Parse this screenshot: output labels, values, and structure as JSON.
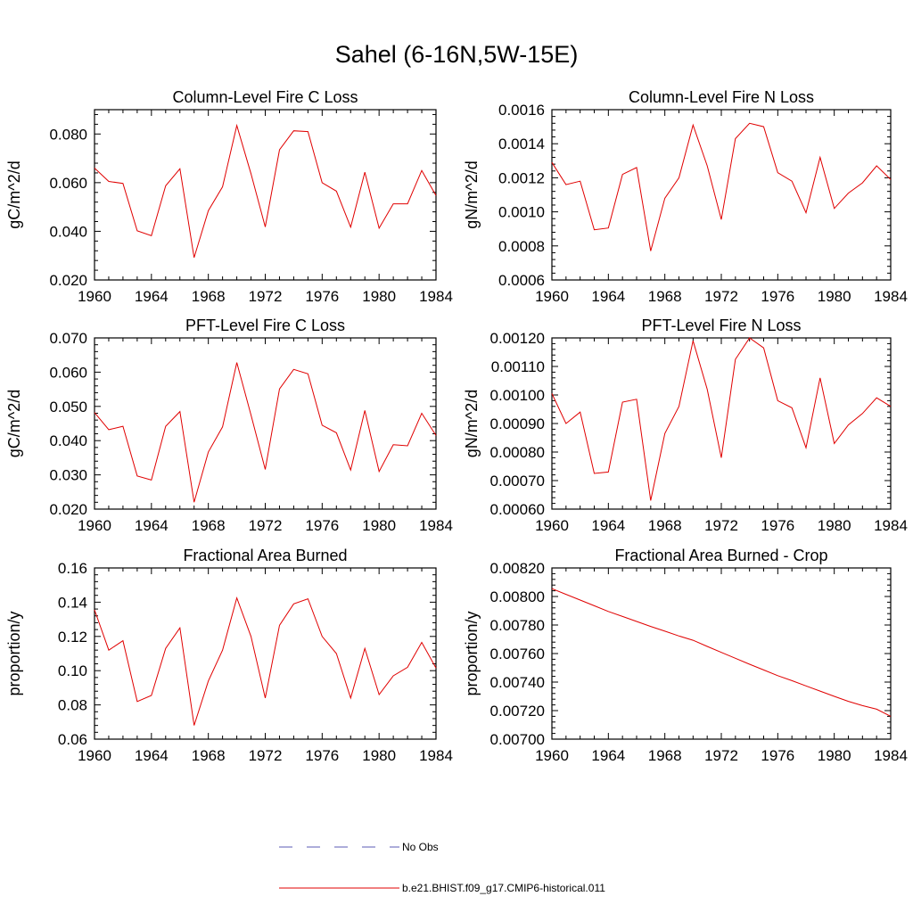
{
  "figure": {
    "title": "Sahel (6-16N,5W-15E)"
  },
  "legend": {
    "entries": [
      {
        "label": "No Obs",
        "color": "#5b5bb5",
        "style": "dashed"
      },
      {
        "label": "b.e21.BHIST.f09_g17.CMIP6-historical.011",
        "color": "#e00000",
        "style": "solid"
      }
    ]
  },
  "chart_data": [
    {
      "type": "line",
      "title": "Column-Level Fire C Loss",
      "ylabel": "gC/m^2/d",
      "xlim": [
        1960,
        1984
      ],
      "ylim": [
        0.02,
        0.09
      ],
      "xticks": [
        1960,
        1964,
        1968,
        1972,
        1976,
        1980,
        1984
      ],
      "xtick_labels": [
        "1960",
        "1964",
        "1968",
        "1972",
        "1976",
        "1980",
        "1984"
      ],
      "yticks": [
        0.02,
        0.04,
        0.06,
        0.08
      ],
      "ytick_labels": [
        "0.020",
        "0.040",
        "0.060",
        "0.080"
      ],
      "x": [
        1960,
        1961,
        1962,
        1963,
        1964,
        1965,
        1966,
        1967,
        1968,
        1969,
        1970,
        1971,
        1972,
        1973,
        1974,
        1975,
        1976,
        1977,
        1978,
        1979,
        1980,
        1981,
        1982,
        1983,
        1984
      ],
      "series": [
        {
          "name": "b.e21.BHIST.f09_g17.CMIP6-historical.011",
          "color": "#e00000",
          "values": [
            0.066,
            0.0605,
            0.0597,
            0.0402,
            0.0382,
            0.0587,
            0.0657,
            0.0292,
            0.0485,
            0.0583,
            0.0835,
            0.0637,
            0.0418,
            0.0735,
            0.0813,
            0.081,
            0.06,
            0.0565,
            0.0417,
            0.0643,
            0.0413,
            0.0513,
            0.0513,
            0.065,
            0.0547
          ]
        }
      ]
    },
    {
      "type": "line",
      "title": "Column-Level Fire N Loss",
      "ylabel": "gN/m^2/d",
      "xlim": [
        1960,
        1984
      ],
      "ylim": [
        0.0006,
        0.0016
      ],
      "xticks": [
        1960,
        1964,
        1968,
        1972,
        1976,
        1980,
        1984
      ],
      "xtick_labels": [
        "1960",
        "1964",
        "1968",
        "1972",
        "1976",
        "1980",
        "1984"
      ],
      "yticks": [
        0.0006,
        0.0008,
        0.001,
        0.0012,
        0.0014,
        0.0016
      ],
      "ytick_labels": [
        "0.0006",
        "0.0008",
        "0.0010",
        "0.0012",
        "0.0014",
        "0.0016"
      ],
      "x": [
        1960,
        1961,
        1962,
        1963,
        1964,
        1965,
        1966,
        1967,
        1968,
        1969,
        1970,
        1971,
        1972,
        1973,
        1974,
        1975,
        1976,
        1977,
        1978,
        1979,
        1980,
        1981,
        1982,
        1983,
        1984
      ],
      "series": [
        {
          "name": "b.e21.BHIST.f09_g17.CMIP6-historical.011",
          "color": "#e00000",
          "values": [
            0.00129,
            0.00116,
            0.00118,
            0.000895,
            0.000905,
            0.00122,
            0.00126,
            0.00077,
            0.00108,
            0.0012,
            0.00151,
            0.00127,
            0.000955,
            0.00143,
            0.00152,
            0.0015,
            0.00123,
            0.00118,
            0.000995,
            0.00132,
            0.00102,
            0.00111,
            0.00117,
            0.00127,
            0.00119
          ]
        }
      ]
    },
    {
      "type": "line",
      "title": "PFT-Level Fire C Loss",
      "ylabel": "gC/m^2/d",
      "xlim": [
        1960,
        1984
      ],
      "ylim": [
        0.02,
        0.07
      ],
      "xticks": [
        1960,
        1964,
        1968,
        1972,
        1976,
        1980,
        1984
      ],
      "xtick_labels": [
        "1960",
        "1964",
        "1968",
        "1972",
        "1976",
        "1980",
        "1984"
      ],
      "yticks": [
        0.02,
        0.03,
        0.04,
        0.05,
        0.06,
        0.07
      ],
      "ytick_labels": [
        "0.020",
        "0.030",
        "0.040",
        "0.050",
        "0.060",
        "0.070"
      ],
      "x": [
        1960,
        1961,
        1962,
        1963,
        1964,
        1965,
        1966,
        1967,
        1968,
        1969,
        1970,
        1971,
        1972,
        1973,
        1974,
        1975,
        1976,
        1977,
        1978,
        1979,
        1980,
        1981,
        1982,
        1983,
        1984
      ],
      "series": [
        {
          "name": "b.e21.BHIST.f09_g17.CMIP6-historical.011",
          "color": "#e00000",
          "values": [
            0.0482,
            0.0432,
            0.0442,
            0.0297,
            0.0285,
            0.0442,
            0.0485,
            0.022,
            0.0367,
            0.044,
            0.0628,
            0.0475,
            0.0316,
            0.0551,
            0.0608,
            0.0595,
            0.0445,
            0.0423,
            0.0314,
            0.0488,
            0.031,
            0.0388,
            0.0385,
            0.048,
            0.0415
          ]
        }
      ]
    },
    {
      "type": "line",
      "title": "PFT-Level Fire N Loss",
      "ylabel": "gN/m^2/d",
      "xlim": [
        1960,
        1984
      ],
      "ylim": [
        0.0006,
        0.0012
      ],
      "xticks": [
        1960,
        1964,
        1968,
        1972,
        1976,
        1980,
        1984
      ],
      "xtick_labels": [
        "1960",
        "1964",
        "1968",
        "1972",
        "1976",
        "1980",
        "1984"
      ],
      "yticks": [
        0.0006,
        0.0007,
        0.0008,
        0.0009,
        0.001,
        0.0011,
        0.0012
      ],
      "ytick_labels": [
        "0.00060",
        "0.00070",
        "0.00080",
        "0.00090",
        "0.00100",
        "0.00110",
        "0.00120"
      ],
      "x": [
        1960,
        1961,
        1962,
        1963,
        1964,
        1965,
        1966,
        1967,
        1968,
        1969,
        1970,
        1971,
        1972,
        1973,
        1974,
        1975,
        1976,
        1977,
        1978,
        1979,
        1980,
        1981,
        1982,
        1983,
        1984
      ],
      "series": [
        {
          "name": "b.e21.BHIST.f09_g17.CMIP6-historical.011",
          "color": "#e00000",
          "values": [
            0.001005,
            0.0009,
            0.00094,
            0.000725,
            0.00073,
            0.000975,
            0.000985,
            0.00063,
            0.000865,
            0.00096,
            0.00119,
            0.00102,
            0.00078,
            0.001125,
            0.0012,
            0.001165,
            0.00098,
            0.000955,
            0.000815,
            0.00106,
            0.00083,
            0.000895,
            0.000935,
            0.00099,
            0.00096
          ]
        }
      ]
    },
    {
      "type": "line",
      "title": "Fractional Area Burned",
      "ylabel": "proportion/y",
      "xlim": [
        1960,
        1984
      ],
      "ylim": [
        0.06,
        0.16
      ],
      "xticks": [
        1960,
        1964,
        1968,
        1972,
        1976,
        1980,
        1984
      ],
      "xtick_labels": [
        "1960",
        "1964",
        "1968",
        "1972",
        "1976",
        "1980",
        "1984"
      ],
      "yticks": [
        0.06,
        0.08,
        0.1,
        0.12,
        0.14,
        0.16
      ],
      "ytick_labels": [
        "0.06",
        "0.08",
        "0.10",
        "0.12",
        "0.14",
        "0.16"
      ],
      "x": [
        1960,
        1961,
        1962,
        1963,
        1964,
        1965,
        1966,
        1967,
        1968,
        1969,
        1970,
        1971,
        1972,
        1973,
        1974,
        1975,
        1976,
        1977,
        1978,
        1979,
        1980,
        1981,
        1982,
        1983,
        1984
      ],
      "series": [
        {
          "name": "b.e21.BHIST.f09_g17.CMIP6-historical.011",
          "color": "#e00000",
          "values": [
            0.1355,
            0.112,
            0.1175,
            0.082,
            0.0855,
            0.113,
            0.125,
            0.068,
            0.094,
            0.112,
            0.1425,
            0.12,
            0.084,
            0.1265,
            0.139,
            0.142,
            0.12,
            0.11,
            0.084,
            0.113,
            0.086,
            0.097,
            0.102,
            0.1165,
            0.1015
          ]
        }
      ]
    },
    {
      "type": "line",
      "title": "Fractional Area Burned - Crop",
      "ylabel": "proportion/y",
      "xlim": [
        1960,
        1984
      ],
      "ylim": [
        0.007,
        0.0082
      ],
      "xticks": [
        1960,
        1964,
        1968,
        1972,
        1976,
        1980,
        1984
      ],
      "xtick_labels": [
        "1960",
        "1964",
        "1968",
        "1972",
        "1976",
        "1980",
        "1984"
      ],
      "yticks": [
        0.007,
        0.0072,
        0.0074,
        0.0076,
        0.0078,
        0.008,
        0.0082
      ],
      "ytick_labels": [
        "0.00700",
        "0.00720",
        "0.00740",
        "0.00760",
        "0.00780",
        "0.00800",
        "0.00820"
      ],
      "x": [
        1960,
        1961,
        1962,
        1963,
        1964,
        1965,
        1966,
        1967,
        1968,
        1969,
        1970,
        1971,
        1972,
        1973,
        1974,
        1975,
        1976,
        1977,
        1978,
        1979,
        1980,
        1981,
        1982,
        1983,
        1984
      ],
      "series": [
        {
          "name": "b.e21.BHIST.f09_g17.CMIP6-historical.011",
          "color": "#e00000",
          "values": [
            0.008055,
            0.008015,
            0.007975,
            0.007935,
            0.007895,
            0.00786,
            0.007825,
            0.00779,
            0.007757,
            0.007723,
            0.007693,
            0.00765,
            0.007608,
            0.007567,
            0.007525,
            0.007485,
            0.007445,
            0.00741,
            0.007373,
            0.007337,
            0.0073,
            0.007265,
            0.007235,
            0.00721,
            0.00716
          ]
        }
      ]
    }
  ]
}
